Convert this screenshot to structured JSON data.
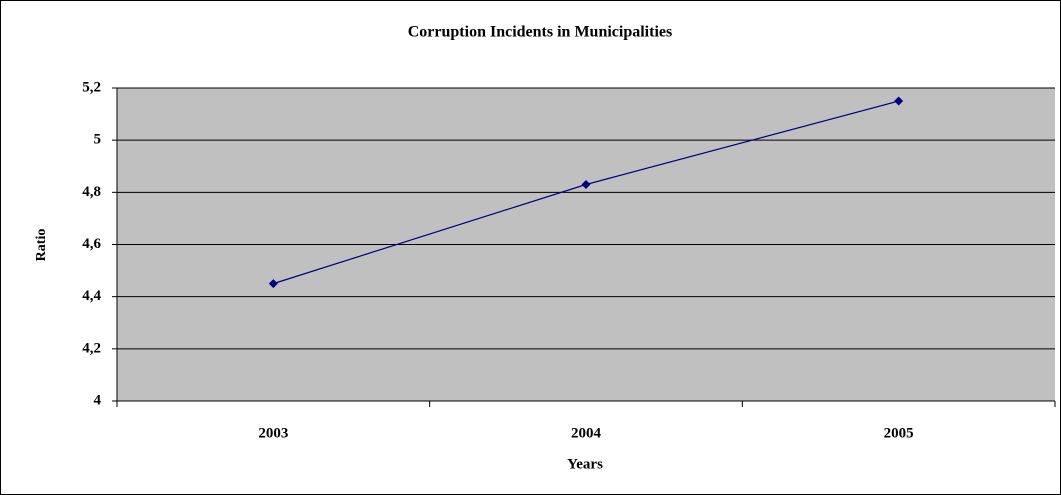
{
  "chart_data": {
    "type": "line",
    "title": "Corruption Incidents in Municipalities",
    "x_label": "Years",
    "y_label": "Ratio",
    "categories": [
      "2003",
      "2004",
      "2005"
    ],
    "series": [
      {
        "name": "Ratio",
        "color": "#000080",
        "values": [
          4.45,
          4.83,
          5.15
        ]
      }
    ],
    "ylim": [
      4,
      5.2
    ],
    "yticks": [
      4,
      {
        "value": 4.2,
        "label": "4,2"
      },
      {
        "value": 4.4,
        "label": "4,4"
      },
      {
        "value": 4.6,
        "label": "4,6"
      },
      {
        "value": 4.8,
        "label": "4,8"
      },
      5,
      {
        "value": 5.2,
        "label": "5,2"
      }
    ],
    "grid": true,
    "plot_background": "#c0c0c0"
  }
}
